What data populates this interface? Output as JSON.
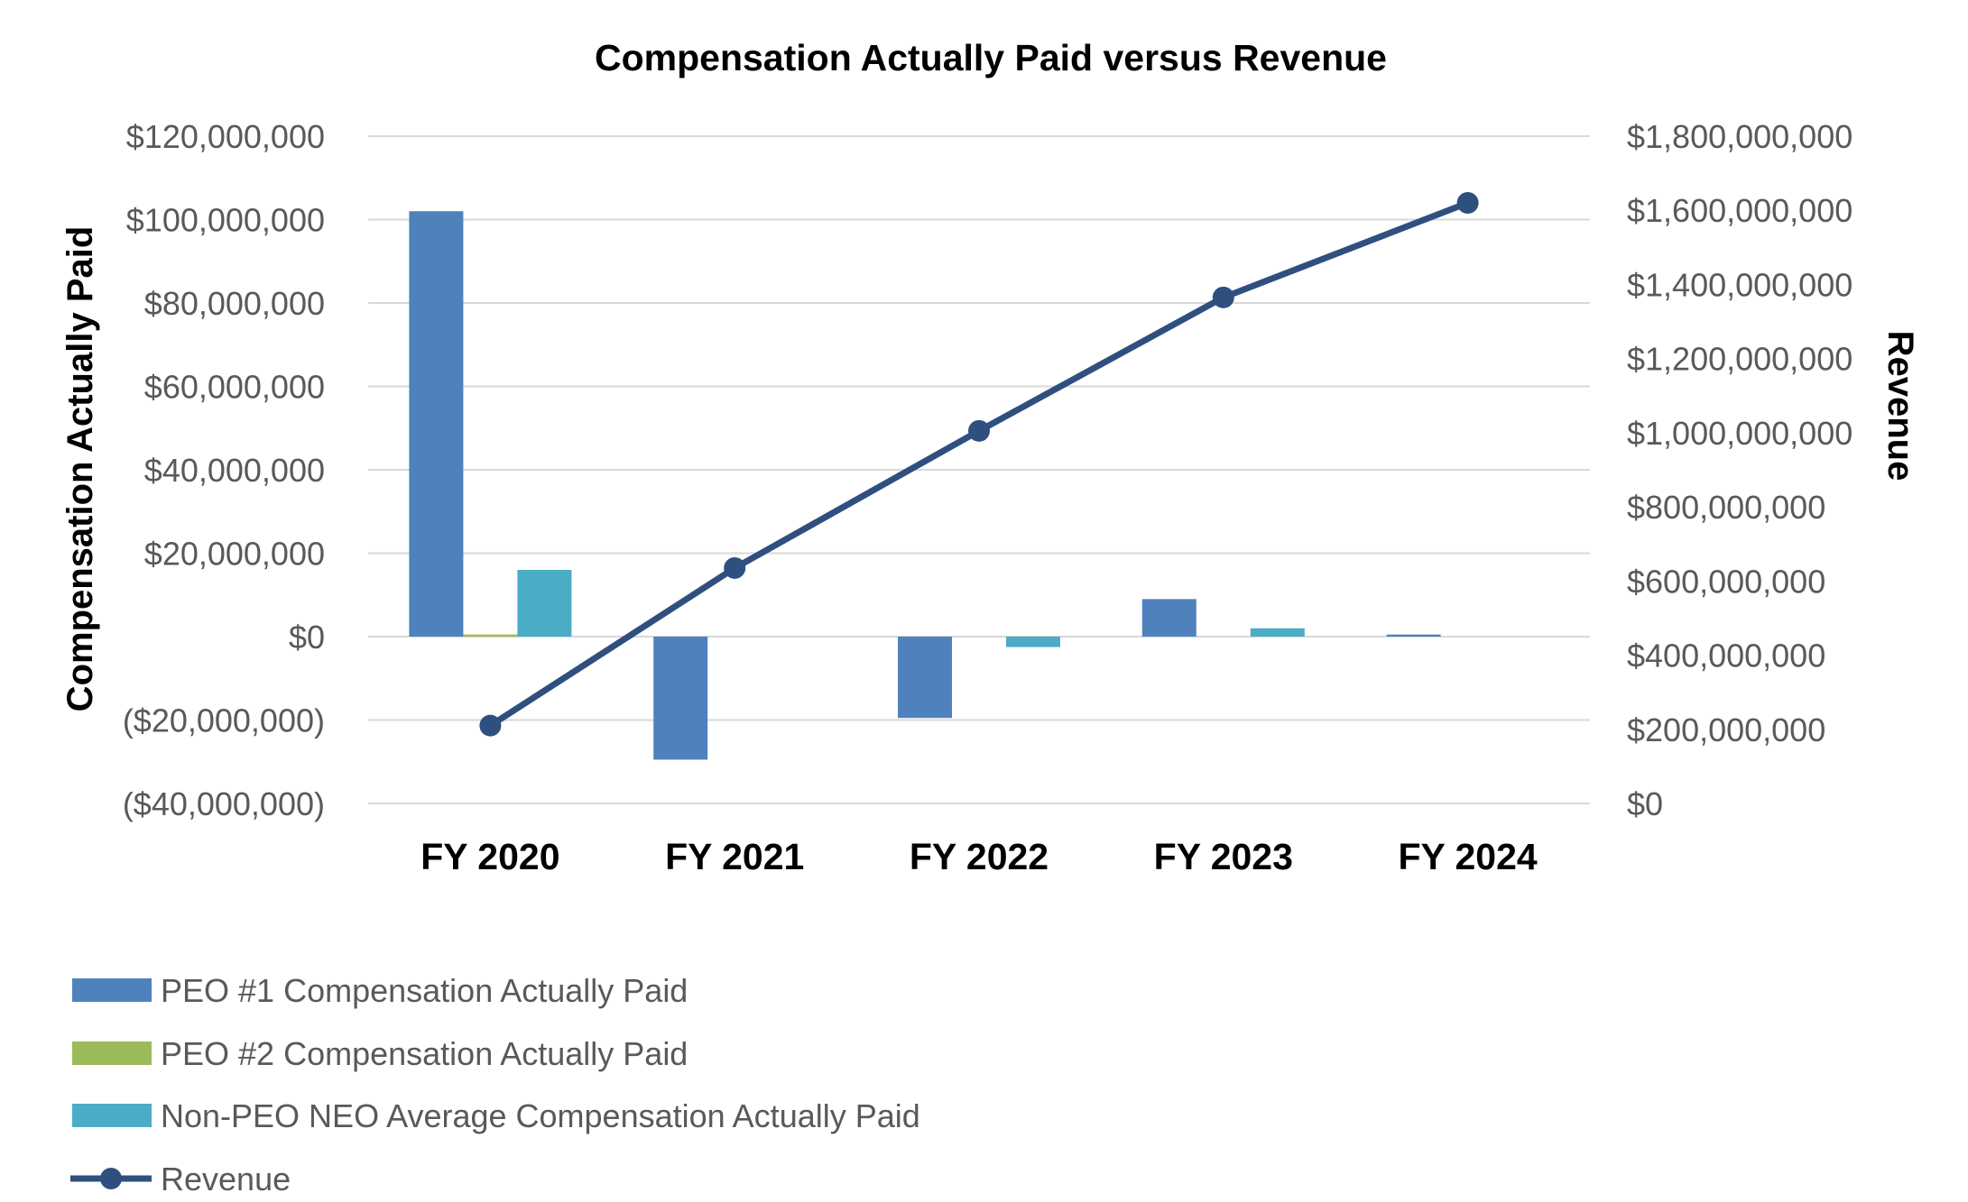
{
  "chart_data": {
    "type": "bar",
    "title": "Compensation Actually Paid versus Revenue",
    "categories": [
      "FY 2020",
      "FY 2021",
      "FY 2022",
      "FY 2023",
      "FY 2024"
    ],
    "ylabel": "Compensation Actually Paid",
    "y2label": "Revenue",
    "ylim": [
      -40000000,
      120000000
    ],
    "y2lim": [
      0,
      1800000000
    ],
    "y_ticks": [
      {
        "value": 120000000,
        "label": "$120,000,000"
      },
      {
        "value": 100000000,
        "label": "$100,000,000"
      },
      {
        "value": 80000000,
        "label": "$80,000,000"
      },
      {
        "value": 60000000,
        "label": "$60,000,000"
      },
      {
        "value": 40000000,
        "label": "$40,000,000"
      },
      {
        "value": 20000000,
        "label": "$20,000,000"
      },
      {
        "value": 0,
        "label": "$0"
      },
      {
        "value": -20000000,
        "label": "($20,000,000)"
      },
      {
        "value": -40000000,
        "label": "($40,000,000)"
      }
    ],
    "y2_ticks": [
      {
        "value": 1800000000,
        "label": "$1,800,000,000"
      },
      {
        "value": 1600000000,
        "label": "$1,600,000,000"
      },
      {
        "value": 1400000000,
        "label": "$1,400,000,000"
      },
      {
        "value": 1200000000,
        "label": "$1,200,000,000"
      },
      {
        "value": 1000000000,
        "label": "$1,000,000,000"
      },
      {
        "value": 800000000,
        "label": "$800,000,000"
      },
      {
        "value": 600000000,
        "label": "$600,000,000"
      },
      {
        "value": 400000000,
        "label": "$400,000,000"
      },
      {
        "value": 200000000,
        "label": "$200,000,000"
      },
      {
        "value": 0,
        "label": "$0"
      }
    ],
    "grid": true,
    "legend_position": "bottom-left",
    "series": [
      {
        "name": "PEO #1 Compensation Actually Paid",
        "type": "bar",
        "axis": "left",
        "color": "#4f81bd",
        "values": [
          102000000,
          -29500000,
          -19500000,
          9000000,
          500000
        ]
      },
      {
        "name": "PEO #2 Compensation Actually Paid",
        "type": "bar",
        "axis": "left",
        "color": "#9bbb59",
        "values": [
          500000,
          null,
          null,
          null,
          null
        ]
      },
      {
        "name": "Non-PEO NEO Average Compensation Actually Paid",
        "type": "bar",
        "axis": "left",
        "color": "#4bacc6",
        "values": [
          16000000,
          0,
          -2500000,
          2000000,
          0
        ]
      },
      {
        "name": "Revenue",
        "type": "line",
        "axis": "right",
        "color": "#2f4f7f",
        "values": [
          210000000,
          635000000,
          1005000000,
          1365000000,
          1620000000
        ]
      }
    ]
  }
}
